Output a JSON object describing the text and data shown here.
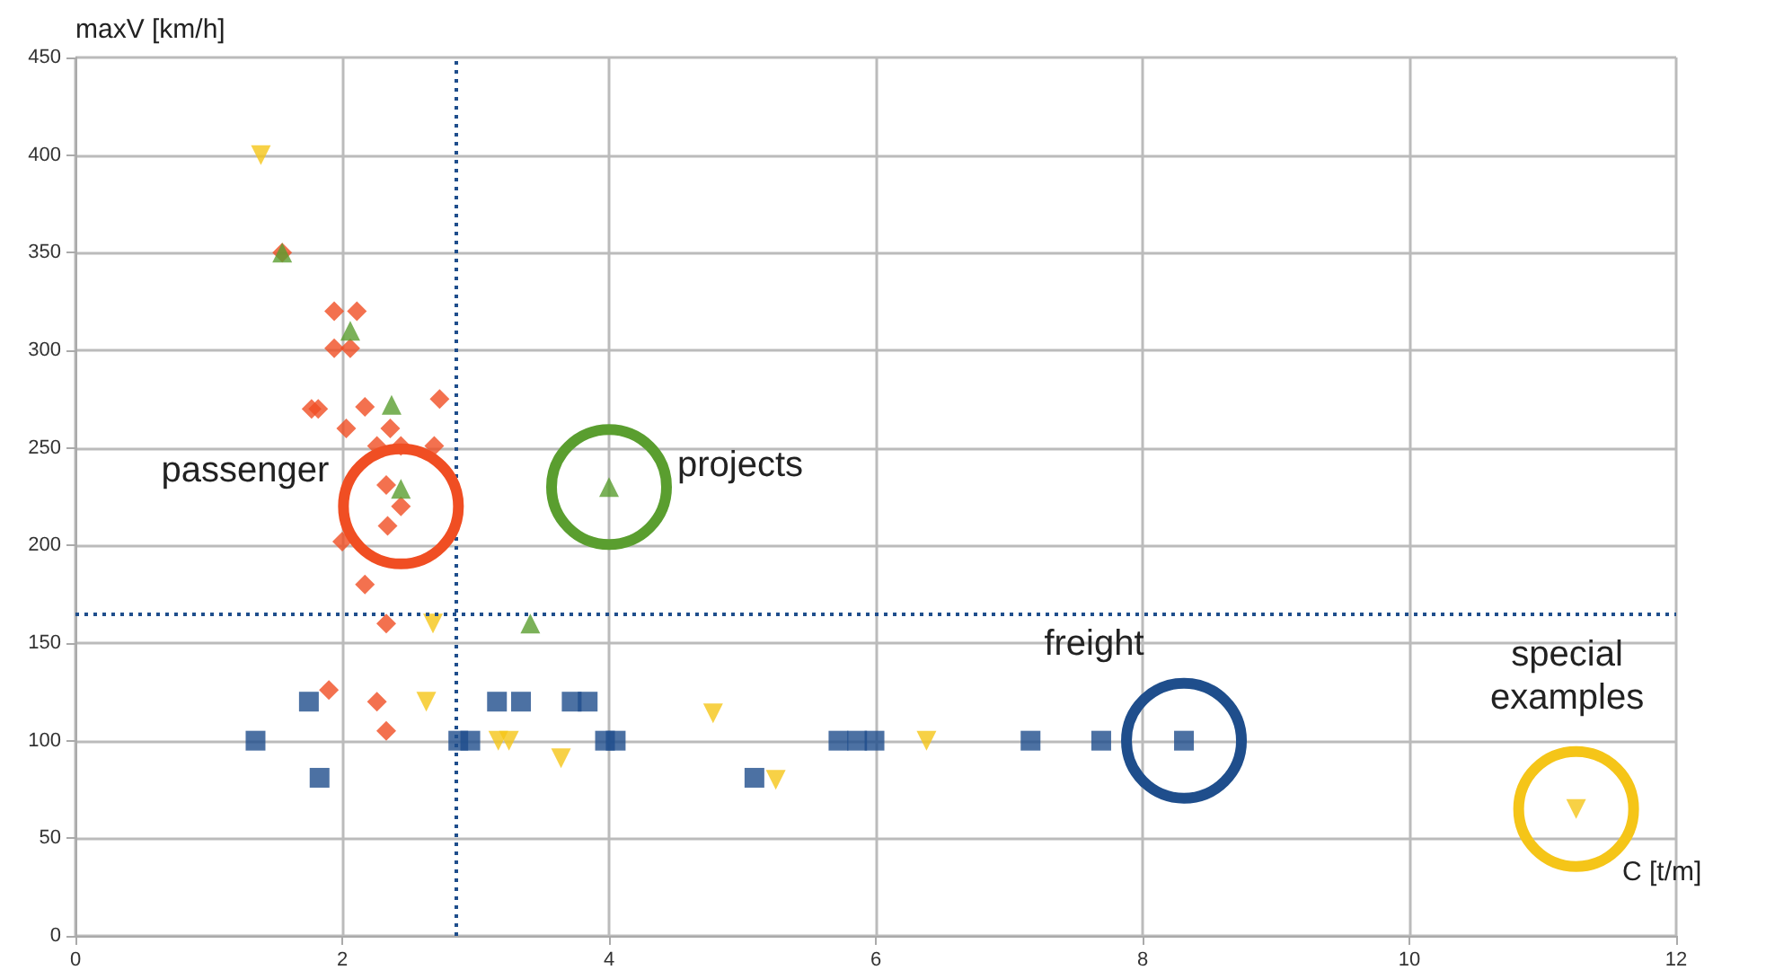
{
  "chart_data": {
    "type": "scatter",
    "xlabel": "C [t/m]",
    "ylabel": "maxV [km/h]",
    "xlim": [
      0,
      12
    ],
    "xticks": [
      0,
      2,
      4,
      6,
      8,
      10,
      12
    ],
    "ylim": [
      0,
      450
    ],
    "yticks": [
      0,
      50,
      100,
      150,
      200,
      250,
      300,
      350,
      400,
      450
    ],
    "grid": true,
    "series": [
      {
        "color": "#f04e23",
        "marker": "diamond",
        "x": [
          1.55,
          1.94,
          2.11,
          1.94,
          2.06,
          1.77,
          1.82,
          2.17,
          2.03,
          2.73,
          2.36,
          2.26,
          2.44,
          2.69,
          2.33,
          2.44,
          2.34,
          2.0,
          2.17,
          2.33,
          1.9,
          2.26,
          2.33
        ],
        "values": [
          350,
          320,
          320,
          301,
          301,
          270,
          270,
          271,
          260,
          275,
          260,
          251,
          251,
          251,
          231,
          220,
          210,
          202,
          180,
          160,
          126,
          120,
          105
        ]
      },
      {
        "color": "#5a9e2f",
        "marker": "triangle",
        "x": [
          1.55,
          2.06,
          2.37,
          2.44,
          3.41,
          4.0
        ],
        "values": [
          350,
          310,
          272,
          229,
          160,
          230
        ]
      },
      {
        "color": "#1f4e8c",
        "marker": "square",
        "x": [
          1.35,
          1.75,
          1.83,
          2.87,
          2.96,
          3.16,
          3.34,
          3.72,
          3.84,
          3.97,
          4.05,
          5.09,
          5.72,
          5.86,
          5.99,
          7.16,
          7.69,
          8.31
        ],
        "values": [
          100,
          120,
          81,
          100,
          100,
          120,
          120,
          120,
          120,
          100,
          100,
          81,
          100,
          100,
          100,
          100,
          100,
          100
        ]
      },
      {
        "color": "#f5c518",
        "marker": "triangle-down",
        "x": [
          1.39,
          2.68,
          2.63,
          3.17,
          3.25,
          3.64,
          4.78,
          5.25,
          6.38,
          11.25
        ],
        "values": [
          400,
          160,
          120,
          100,
          100,
          91,
          114,
          80,
          100,
          65
        ]
      }
    ],
    "ref_lines": [
      {
        "axis": "x",
        "value": 2.85,
        "color": "#1f4e8c",
        "line_style": "dotted"
      },
      {
        "axis": "y",
        "value": 165,
        "color": "#1f4e8c",
        "line_style": "dotted"
      }
    ],
    "annotations": [
      {
        "text": "passenger",
        "x": 2.44,
        "y": 220
      },
      {
        "text": "projects",
        "x": 4.0,
        "y": 230
      },
      {
        "text": "freight",
        "x": 8.31,
        "y": 100
      },
      {
        "text": "special\nexamples",
        "x": 11.25,
        "y": 65
      }
    ]
  }
}
